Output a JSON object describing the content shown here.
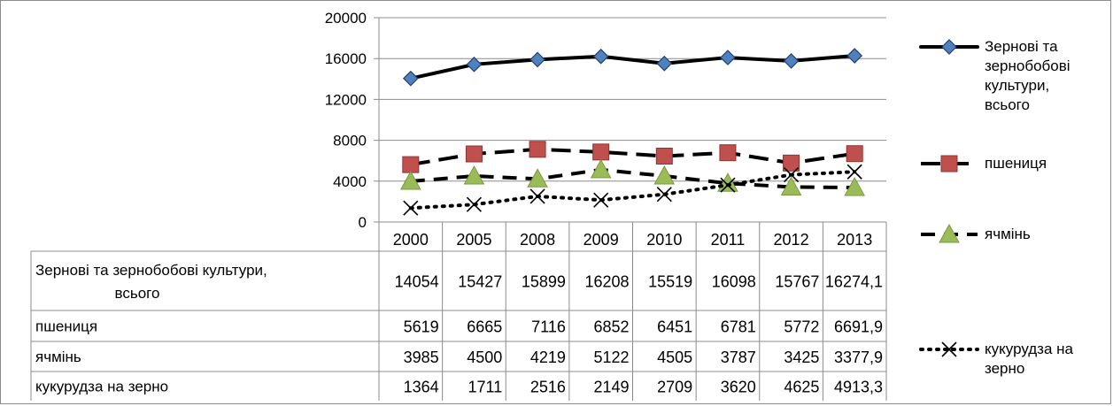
{
  "chart_data": {
    "type": "line",
    "categories": [
      "2000",
      "2005",
      "2008",
      "2009",
      "2010",
      "2011",
      "2012",
      "2013"
    ],
    "ylim": [
      0,
      20000
    ],
    "yticks": [
      "0",
      "4000",
      "8000",
      "12000",
      "16000",
      "20000"
    ],
    "grid": true,
    "legend_position": "right",
    "series": [
      {
        "name": "Зернові  та зернобобові культури, всього",
        "legend_lines": [
          "Зернові  та",
          "зернобобові",
          "культури,",
          "всього"
        ],
        "table_label_lines": [
          "Зернові  та зернобобові культури,",
          "всього"
        ],
        "values": [
          14054,
          15427,
          15899,
          16208,
          15519,
          16098,
          15767,
          16274.1
        ],
        "value_labels": [
          "14054",
          "15427",
          "15899",
          "16208",
          "15519",
          "16098",
          "15767",
          "16274,1"
        ],
        "marker": "diamond",
        "line_style": "solid",
        "marker_color": "#4f81bd"
      },
      {
        "name": "пшениця",
        "legend_lines": [
          "пшениця"
        ],
        "table_label_lines": [
          "пшениця"
        ],
        "values": [
          5619,
          6665,
          7116,
          6852,
          6451,
          6781,
          5772,
          6691.9
        ],
        "value_labels": [
          "5619",
          "6665",
          "7116",
          "6852",
          "6451",
          "6781",
          "5772",
          "6691,9"
        ],
        "marker": "square",
        "line_style": "long-dash",
        "marker_color": "#c0504d"
      },
      {
        "name": "ячмінь",
        "legend_lines": [
          "ячмінь"
        ],
        "table_label_lines": [
          "ячмінь"
        ],
        "values": [
          3985,
          4500,
          4219,
          5122,
          4505,
          3787,
          3425,
          3377.9
        ],
        "value_labels": [
          "3985",
          "4500",
          "4219",
          "5122",
          "4505",
          "3787",
          "3425",
          "3377,9"
        ],
        "marker": "triangle",
        "line_style": "dash",
        "marker_color": "#9bbb59"
      },
      {
        "name": "кукурудза на зерно",
        "legend_lines": [
          "кукурудза на",
          "зерно"
        ],
        "table_label_lines": [
          "кукурудза на зерно"
        ],
        "values": [
          1364,
          1711,
          2516,
          2149,
          2709,
          3620,
          4625,
          4913.3
        ],
        "value_labels": [
          "1364",
          "1711",
          "2516",
          "2149",
          "2709",
          "3620",
          "4625",
          "4913,3"
        ],
        "marker": "x",
        "line_style": "dot",
        "marker_color": "#000000"
      }
    ]
  }
}
